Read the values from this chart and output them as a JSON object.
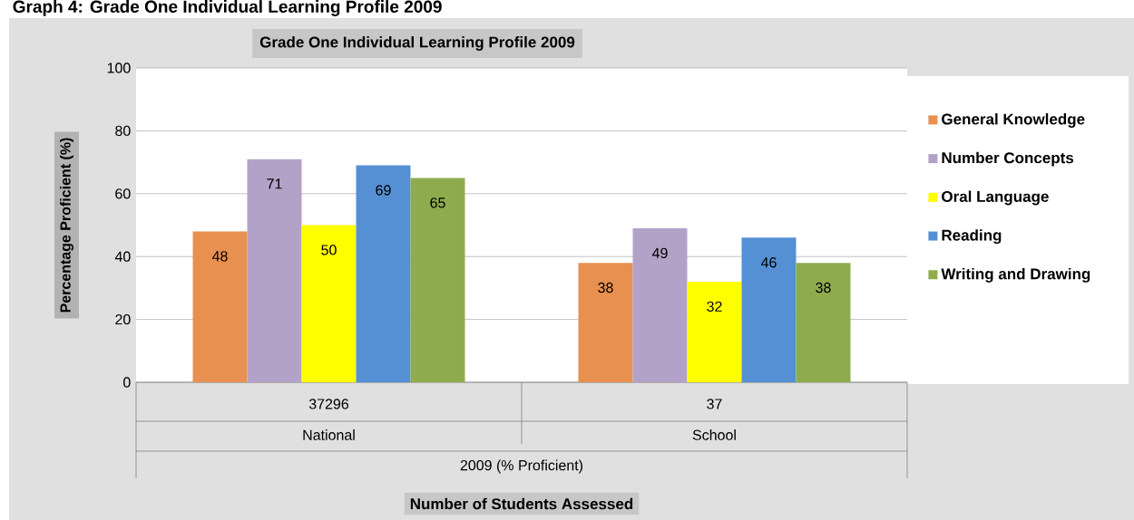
{
  "chart_data": {
    "type": "bar",
    "title": "Graph 4: Grade One Individual Learning Profile 2009",
    "subtitle": "Grade One Individual Learning Profile 2009",
    "ylabel": "Percentage Proficient (%)",
    "categories": [
      "37296",
      "37"
    ],
    "annotations": [
      "National",
      "School",
      "2009 (% Proficient)",
      "Number of Students Assessed"
    ],
    "series": [
      {
        "name": "General Knowledge",
        "color": "#e8904f",
        "values": [
          48,
          38
        ]
      },
      {
        "name": "Number Concepts",
        "color": "#b3a2c7",
        "values": [
          71,
          49
        ]
      },
      {
        "name": "Oral Language",
        "color": "#ffff00",
        "values": [
          50,
          32
        ]
      },
      {
        "name": "Reading",
        "color": "#5590d4",
        "values": [
          69,
          46
        ]
      },
      {
        "name": "Writing and Drawing",
        "color": "#8eac4e",
        "values": [
          65,
          38
        ]
      }
    ],
    "ylim": [
      0,
      100
    ],
    "yticks": [
      0,
      20,
      40,
      60,
      80,
      100
    ],
    "grid": "y",
    "legend": "right",
    "data_labels": true
  }
}
